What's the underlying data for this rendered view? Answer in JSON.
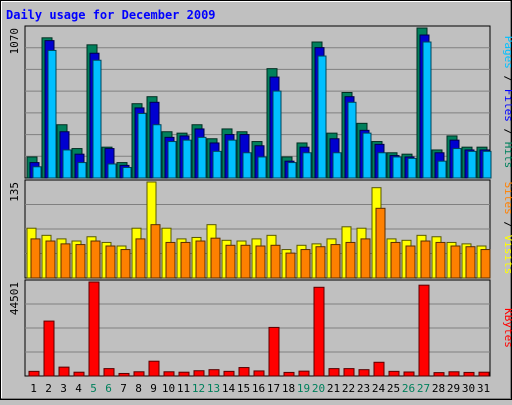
{
  "chart_data": [
    {
      "type": "bar",
      "title": "Daily usage for December 2009",
      "categories": [
        "1",
        "2",
        "3",
        "4",
        "5",
        "6",
        "7",
        "8",
        "9",
        "10",
        "11",
        "12",
        "13",
        "14",
        "15",
        "16",
        "17",
        "18",
        "19",
        "20",
        "21",
        "22",
        "23",
        "24",
        "25",
        "26",
        "27",
        "28",
        "29",
        "30",
        "31"
      ],
      "weekend_days": [
        "5",
        "6",
        "12",
        "13",
        "19",
        "20",
        "26",
        "27"
      ],
      "ymax_label": "1070",
      "ylim": [
        0,
        1070
      ],
      "axis_label_parts": [
        "Pages",
        "Files",
        "Hits"
      ],
      "series": [
        {
          "name": "Hits",
          "color": "#00805c",
          "values": [
            150,
            1000,
            380,
            210,
            950,
            220,
            110,
            530,
            580,
            330,
            320,
            380,
            280,
            350,
            330,
            260,
            780,
            150,
            250,
            970,
            320,
            610,
            390,
            260,
            180,
            170,
            1070,
            200,
            300,
            220,
            220
          ]
        },
        {
          "name": "Files",
          "color": "#0000d0",
          "values": [
            110,
            980,
            330,
            170,
            890,
            210,
            90,
            500,
            540,
            290,
            300,
            350,
            250,
            310,
            310,
            230,
            720,
            120,
            220,
            930,
            280,
            580,
            340,
            240,
            160,
            150,
            1020,
            180,
            270,
            200,
            200
          ]
        },
        {
          "name": "Pages",
          "color": "#00c0ff",
          "values": [
            80,
            910,
            200,
            110,
            840,
            100,
            75,
            460,
            380,
            260,
            270,
            290,
            190,
            270,
            180,
            150,
            620,
            110,
            180,
            870,
            180,
            540,
            320,
            180,
            150,
            140,
            970,
            120,
            210,
            190,
            190
          ]
        }
      ]
    },
    {
      "type": "bar",
      "ymax_label": "135",
      "ylim": [
        0,
        135
      ],
      "axis_label_parts": [
        "Sites",
        "Visits"
      ],
      "series": [
        {
          "name": "Visits",
          "color": "#ffff00",
          "values": [
            70,
            60,
            55,
            52,
            58,
            50,
            45,
            70,
            135,
            70,
            55,
            57,
            75,
            53,
            52,
            55,
            60,
            40,
            46,
            48,
            55,
            72,
            70,
            127,
            55,
            53,
            60,
            58,
            50,
            48,
            45
          ]
        },
        {
          "name": "Sites",
          "color": "#ff8000",
          "values": [
            55,
            52,
            48,
            47,
            52,
            45,
            40,
            55,
            75,
            50,
            50,
            52,
            56,
            46,
            46,
            45,
            46,
            35,
            40,
            44,
            47,
            50,
            55,
            98,
            50,
            45,
            52,
            50,
            45,
            44,
            40
          ]
        }
      ]
    },
    {
      "type": "bar",
      "ymax_label": "44501",
      "ylim": [
        0,
        44501
      ],
      "axis_label_parts": [
        "KBytes"
      ],
      "series": [
        {
          "name": "KBytes",
          "color": "#ff0000",
          "values": [
            2200,
            26000,
            4200,
            1800,
            44501,
            3500,
            1200,
            2000,
            7000,
            2000,
            1800,
            2500,
            3000,
            2200,
            4000,
            2400,
            23000,
            1700,
            2300,
            42000,
            3500,
            3500,
            3000,
            6500,
            2200,
            1900,
            43000,
            1600,
            2000,
            1700,
            1800
          ]
        }
      ]
    }
  ],
  "colors": {
    "background": "#c0c0c0",
    "title_text": "#0000ff",
    "weekend_label": "#00805c",
    "weekday_label": "#000000",
    "grid": "#808080"
  }
}
